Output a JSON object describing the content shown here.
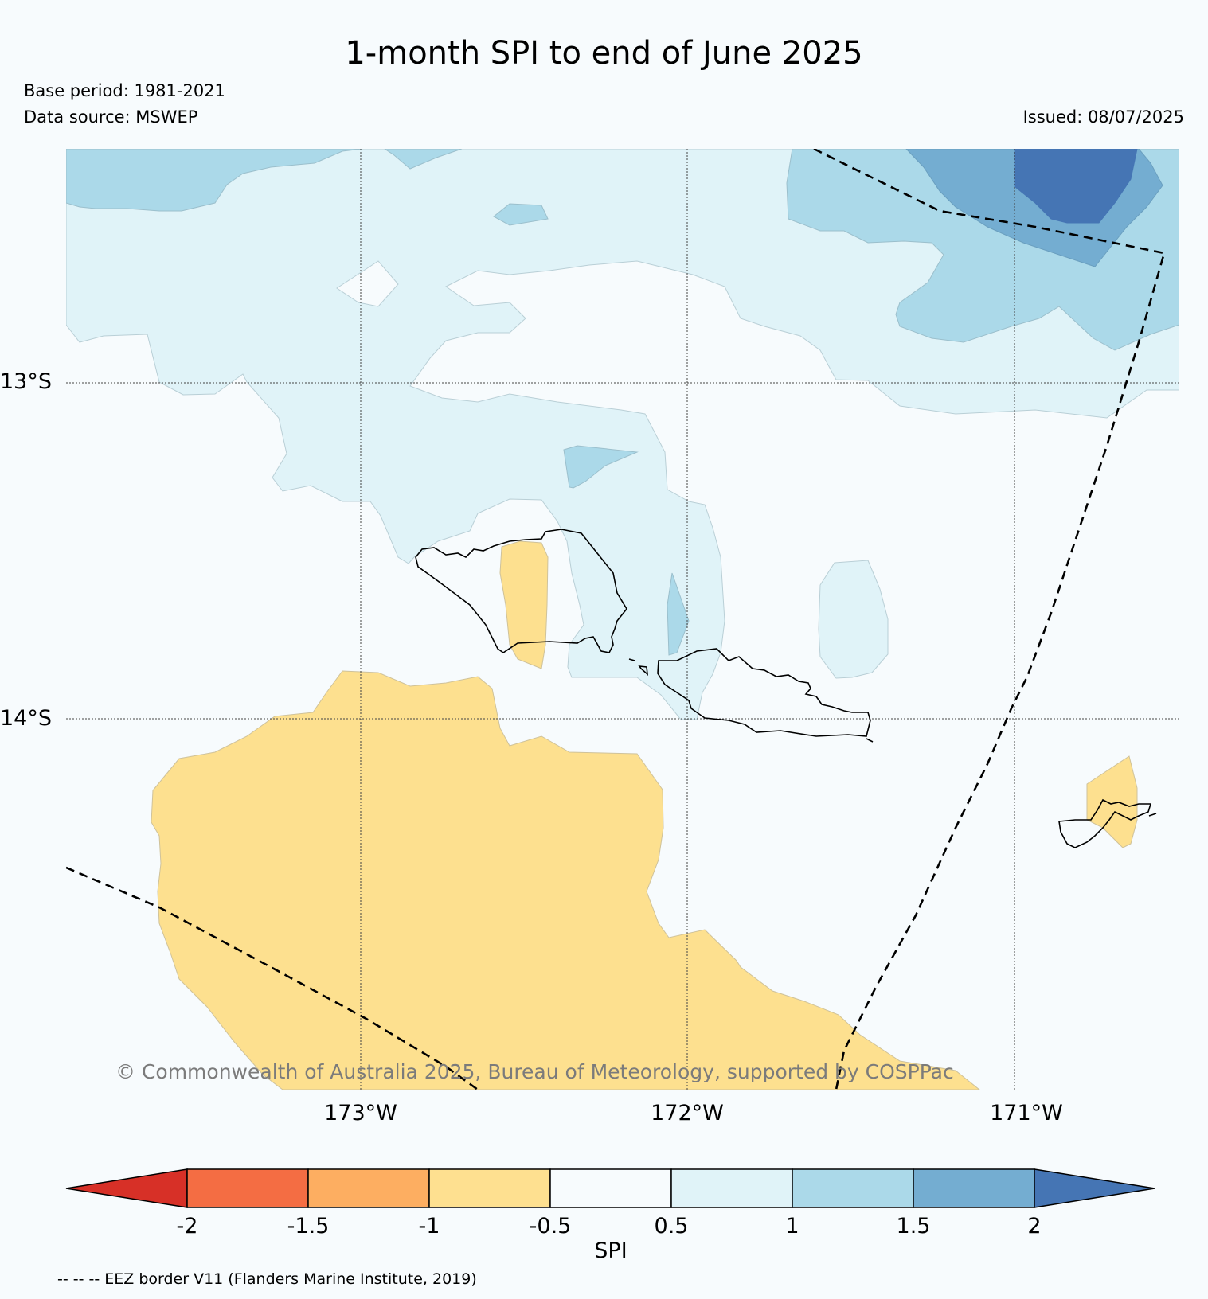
{
  "header": {
    "title": "1-month SPI to end of June 2025",
    "base_period": "Base period: 1981-2021",
    "data_source": "Data source: MSWEP",
    "issued": "Issued: 08/07/2025"
  },
  "map": {
    "lat_labels": [
      "13°S",
      "14°S"
    ],
    "lon_labels": [
      "173°W",
      "172°W",
      "171°W"
    ],
    "copyright": "© Commonwealth of Australia 2025, Bureau of Meteorology, supported by COSPPac",
    "colors": {
      "neg_0_5_to_neg_1": "#fde08f",
      "neutral": "#f7fbfd",
      "pos_0_5_to_1": "#e0f3f8",
      "pos_1_to_1_5": "#abd9e9",
      "pos_1_5_to_2": "#74add1",
      "pos_above_2": "#4575b4"
    }
  },
  "colorbar": {
    "label": "SPI",
    "ticks": [
      "-2",
      "-1.5",
      "-1",
      "-0.5",
      "0.5",
      "1",
      "1.5",
      "2"
    ],
    "colors": [
      "#d73027",
      "#f46d43",
      "#fdae61",
      "#fee090",
      "#f7fbfd",
      "#e0f3f8",
      "#abd9e9",
      "#74add1",
      "#4575b4"
    ]
  },
  "legend": {
    "eez_note": "-- -- -- EEZ border V11 (Flanders Marine Institute, 2019)"
  }
}
